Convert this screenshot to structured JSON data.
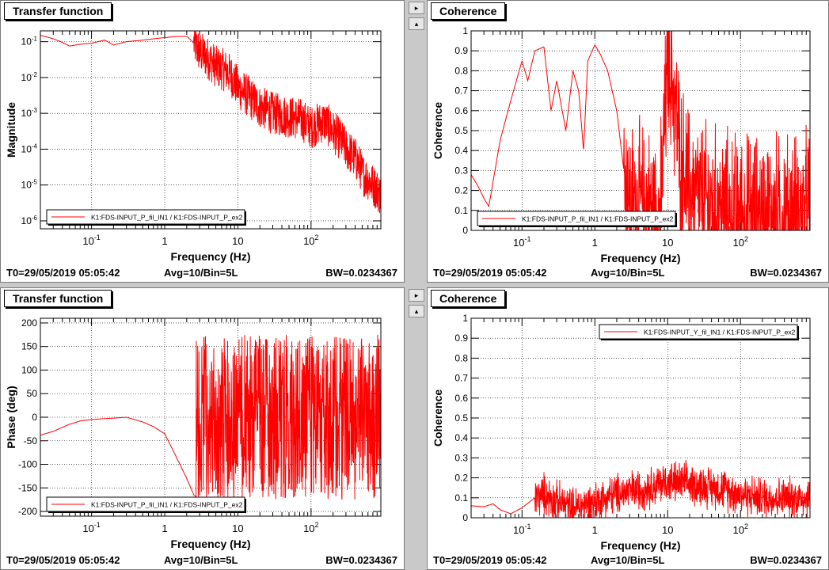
{
  "footer": {
    "t0": "T0=29/05/2019 05:05:42",
    "avg": "Avg=10/Bin=5L",
    "bw": "BW=0.0234367"
  },
  "colors": {
    "trace": "#ff0000",
    "grid": "#000000",
    "background": "#ffffff",
    "window": "#c9c9c9"
  },
  "controls": {
    "right_arrow": "▸",
    "up_arrow": "▴"
  },
  "chart_data": [
    {
      "panel_title": "Transfer function",
      "type": "line",
      "xscale": "log",
      "yscale": "log",
      "xlim": [
        0.02,
        900
      ],
      "ylim": [
        6e-07,
        0.2
      ],
      "xlabel": "Frequency (Hz)",
      "ylabel": "Magnitude",
      "xticks": [
        {
          "v": 0.1,
          "b": "10",
          "e": "-1"
        },
        {
          "v": 1,
          "b": "1",
          "e": ""
        },
        {
          "v": 10,
          "b": "10",
          "e": ""
        },
        {
          "v": 100,
          "b": "10",
          "e": "2"
        }
      ],
      "yticks": [
        {
          "v": 1e-06,
          "b": "10",
          "e": "-6"
        },
        {
          "v": 1e-05,
          "b": "10",
          "e": "-5"
        },
        {
          "v": 0.0001,
          "b": "10",
          "e": "-4"
        },
        {
          "v": 0.001,
          "b": "10",
          "e": "-3"
        },
        {
          "v": 0.01,
          "b": "10",
          "e": "-2"
        },
        {
          "v": 0.1,
          "b": "10",
          "e": "-1"
        }
      ],
      "legend": "K1:FDS-INPUT_P_fil_IN1 / K1:FDS-INPUT_P_ex2",
      "legend_position": "bottom-left",
      "grid": true,
      "series": [
        {
          "name": "K1:FDS-INPUT_P_fil_IN1 / K1:FDS-INPUT_P_ex2",
          "x": [
            0.02,
            0.03,
            0.05,
            0.07,
            0.1,
            0.15,
            0.2,
            0.3,
            0.5,
            0.7,
            1,
            1.5,
            2,
            3,
            5,
            7,
            10,
            15,
            20,
            30,
            50,
            70,
            100,
            150,
            200,
            300,
            500,
            700,
            900
          ],
          "y": [
            0.15,
            0.12,
            0.075,
            0.085,
            0.09,
            0.11,
            0.08,
            0.1,
            0.11,
            0.12,
            0.13,
            0.14,
            0.14,
            0.05,
            0.02,
            0.015,
            0.005,
            0.0025,
            0.0015,
            0.001,
            0.0008,
            0.0007,
            0.0004,
            0.0006,
            0.0003,
            0.0001,
            2e-05,
            1e-05,
            5e-06
          ],
          "noise_from": 2.5,
          "noise_amp": 0.6
        }
      ]
    },
    {
      "panel_title": "Coherence",
      "type": "line",
      "xscale": "log",
      "yscale": "linear",
      "xlim": [
        0.02,
        900
      ],
      "ylim": [
        0,
        1
      ],
      "xlabel": "Frequency (Hz)",
      "ylabel": "Coherence",
      "xticks": [
        {
          "v": 0.1,
          "b": "10",
          "e": "-1"
        },
        {
          "v": 1,
          "b": "1",
          "e": ""
        },
        {
          "v": 10,
          "b": "10",
          "e": ""
        },
        {
          "v": 100,
          "b": "10",
          "e": "2"
        }
      ],
      "yticks": [
        {
          "v": 0,
          "b": "0",
          "e": ""
        },
        {
          "v": 0.1,
          "b": "0.1",
          "e": ""
        },
        {
          "v": 0.2,
          "b": "0.2",
          "e": ""
        },
        {
          "v": 0.3,
          "b": "0.3",
          "e": ""
        },
        {
          "v": 0.4,
          "b": "0.4",
          "e": ""
        },
        {
          "v": 0.5,
          "b": "0.5",
          "e": ""
        },
        {
          "v": 0.6,
          "b": "0.6",
          "e": ""
        },
        {
          "v": 0.7,
          "b": "0.7",
          "e": ""
        },
        {
          "v": 0.8,
          "b": "0.8",
          "e": ""
        },
        {
          "v": 0.9,
          "b": "0.9",
          "e": ""
        },
        {
          "v": 1,
          "b": "1",
          "e": ""
        }
      ],
      "legend": "K1:FDS-INPUT_P_fil_IN1 / K1:FDS-INPUT_P_ex2",
      "legend_position": "bottom-left",
      "grid": true,
      "series": [
        {
          "name": "K1:FDS-INPUT_P_fil_IN1 / K1:FDS-INPUT_P_ex2",
          "x": [
            0.02,
            0.025,
            0.03,
            0.035,
            0.05,
            0.07,
            0.1,
            0.12,
            0.15,
            0.2,
            0.25,
            0.3,
            0.4,
            0.5,
            0.6,
            0.7,
            0.8,
            1,
            1.2,
            1.5,
            2,
            2.5,
            3,
            5,
            8,
            10,
            12,
            15,
            20,
            30,
            50,
            100,
            200,
            500,
            900
          ],
          "y": [
            0.28,
            0.22,
            0.16,
            0.12,
            0.45,
            0.65,
            0.85,
            0.75,
            0.9,
            0.92,
            0.6,
            0.75,
            0.5,
            0.8,
            0.7,
            0.4,
            0.85,
            0.93,
            0.88,
            0.8,
            0.6,
            0.3,
            0.15,
            0.12,
            0.1,
            0.85,
            0.7,
            0.35,
            0.2,
            0.15,
            0.1,
            0.08,
            0.08,
            0.08,
            0.1
          ],
          "noise_from": 2.5,
          "noise_amp": 0.35
        }
      ]
    },
    {
      "panel_title": "Transfer function",
      "type": "line",
      "xscale": "log",
      "yscale": "linear",
      "xlim": [
        0.02,
        900
      ],
      "ylim": [
        -210,
        210
      ],
      "xlabel": "Frequency (Hz)",
      "ylabel": "Phase (deg)",
      "xticks": [
        {
          "v": 0.1,
          "b": "10",
          "e": "-1"
        },
        {
          "v": 1,
          "b": "1",
          "e": ""
        },
        {
          "v": 10,
          "b": "10",
          "e": ""
        },
        {
          "v": 100,
          "b": "10",
          "e": "2"
        }
      ],
      "yticks": [
        {
          "v": -200,
          "b": "-200",
          "e": ""
        },
        {
          "v": -150,
          "b": "-150",
          "e": ""
        },
        {
          "v": -100,
          "b": "-100",
          "e": ""
        },
        {
          "v": -50,
          "b": "-50",
          "e": ""
        },
        {
          "v": 0,
          "b": "0",
          "e": ""
        },
        {
          "v": 50,
          "b": "50",
          "e": ""
        },
        {
          "v": 100,
          "b": "100",
          "e": ""
        },
        {
          "v": 150,
          "b": "150",
          "e": ""
        },
        {
          "v": 200,
          "b": "200",
          "e": ""
        }
      ],
      "legend": "K1:FDS-INPUT_P_fil_IN1 / K1:FDS-INPUT_P_ex2",
      "legend_position": "bottom-left",
      "grid": true,
      "series": [
        {
          "name": "K1:FDS-INPUT_P_fil_IN1 / K1:FDS-INPUT_P_ex2",
          "x": [
            0.02,
            0.03,
            0.05,
            0.07,
            0.1,
            0.15,
            0.2,
            0.3,
            0.5,
            0.7,
            1,
            1.5,
            2,
            2.5,
            3,
            5,
            10,
            50,
            100,
            900
          ],
          "y": [
            -38,
            -30,
            -15,
            -8,
            -5,
            -3,
            -2,
            0,
            -10,
            -20,
            -35,
            -90,
            -130,
            -165,
            -175,
            0,
            0,
            0,
            0,
            0
          ],
          "noise_from": 2.7,
          "noise_amp": 175
        }
      ]
    },
    {
      "panel_title": "Coherence",
      "type": "line",
      "xscale": "log",
      "yscale": "linear",
      "xlim": [
        0.02,
        900
      ],
      "ylim": [
        0,
        1
      ],
      "xlabel": "Frequency (Hz)",
      "ylabel": "Coherence",
      "xticks": [
        {
          "v": 0.1,
          "b": "10",
          "e": "-1"
        },
        {
          "v": 1,
          "b": "1",
          "e": ""
        },
        {
          "v": 10,
          "b": "10",
          "e": ""
        },
        {
          "v": 100,
          "b": "10",
          "e": "2"
        }
      ],
      "yticks": [
        {
          "v": 0,
          "b": "0",
          "e": ""
        },
        {
          "v": 0.1,
          "b": "0.1",
          "e": ""
        },
        {
          "v": 0.2,
          "b": "0.2",
          "e": ""
        },
        {
          "v": 0.3,
          "b": "0.3",
          "e": ""
        },
        {
          "v": 0.4,
          "b": "0.4",
          "e": ""
        },
        {
          "v": 0.5,
          "b": "0.5",
          "e": ""
        },
        {
          "v": 0.6,
          "b": "0.6",
          "e": ""
        },
        {
          "v": 0.7,
          "b": "0.7",
          "e": ""
        },
        {
          "v": 0.8,
          "b": "0.8",
          "e": ""
        },
        {
          "v": 0.9,
          "b": "0.9",
          "e": ""
        },
        {
          "v": 1,
          "b": "1",
          "e": ""
        }
      ],
      "legend": "K1:FDS-INPUT_Y_fil_IN1 / K1:FDS-INPUT_P_ex2",
      "legend_position": "top-right",
      "grid": true,
      "series": [
        {
          "name": "K1:FDS-INPUT_Y_fil_IN1 / K1:FDS-INPUT_P_ex2",
          "x": [
            0.02,
            0.03,
            0.04,
            0.05,
            0.07,
            0.1,
            0.15,
            0.2,
            0.3,
            0.5,
            1,
            2,
            5,
            10,
            20,
            50,
            100,
            200,
            500,
            900
          ],
          "y": [
            0.06,
            0.055,
            0.07,
            0.04,
            0.02,
            0.05,
            0.1,
            0.12,
            0.08,
            0.05,
            0.08,
            0.12,
            0.15,
            0.18,
            0.17,
            0.15,
            0.12,
            0.1,
            0.1,
            0.1
          ],
          "noise_from": 0.15,
          "noise_amp": 0.09
        }
      ]
    }
  ]
}
